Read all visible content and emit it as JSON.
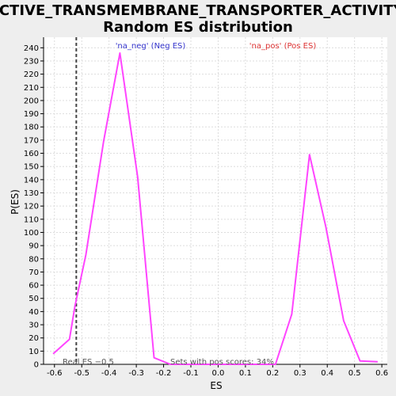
{
  "chart_data": {
    "type": "line",
    "title": [
      "ACTIVE_TRANSMEMBRANE_TRANSPORTER_ACTIVITY:",
      "Random ES distribution"
    ],
    "xlabel": "ES",
    "ylabel": "P(ES)",
    "xlim": [
      -0.64,
      0.62
    ],
    "ylim": [
      0,
      248
    ],
    "x_ticks": [
      -0.6,
      -0.5,
      -0.4,
      -0.3,
      -0.2,
      -0.1,
      0.0,
      0.1,
      0.2,
      0.3,
      0.4,
      0.5,
      0.6
    ],
    "x_tick_labels": [
      "-0.6",
      "-0.5",
      "-0.4",
      "-0.3",
      "-0.2",
      "-0.1",
      "0.0",
      "0.1",
      "0.2",
      "0.3",
      "0.4",
      "0.5",
      "0.6"
    ],
    "y_ticks": [
      0,
      10,
      20,
      30,
      40,
      50,
      60,
      70,
      80,
      90,
      100,
      110,
      120,
      130,
      140,
      150,
      160,
      170,
      180,
      190,
      200,
      210,
      220,
      230,
      240
    ],
    "grid": true,
    "series": [
      {
        "color": "#ff44ff",
        "x": [
          -0.605,
          -0.545,
          -0.525,
          -0.485,
          -0.42,
          -0.36,
          -0.295,
          -0.235,
          -0.175,
          -0.115,
          -0.05,
          0.01,
          0.07,
          0.13,
          0.21,
          0.27,
          0.335,
          0.395,
          0.46,
          0.52,
          0.585
        ],
        "y": [
          8,
          19,
          44,
          83,
          169,
          236,
          142,
          5,
          0,
          0,
          0,
          0,
          0,
          0,
          0,
          38,
          159,
          104,
          33,
          2.5,
          2
        ]
      }
    ],
    "vline": {
      "x": -0.52,
      "style": "dashed",
      "color": "#444444"
    },
    "annotations": {
      "neg_label": "'na_neg' (Neg ES)",
      "pos_label": "'na_pos' (Pos ES)",
      "real_es": "Real ES −0.5",
      "pos_scores": "Sets with pos scores: 34%"
    },
    "colors": {
      "background": "#eeeeee",
      "plot_bg": "#ffffff",
      "grid": "#dddddd",
      "neg_label": "#3333cc",
      "pos_label": "#dd3333"
    }
  }
}
